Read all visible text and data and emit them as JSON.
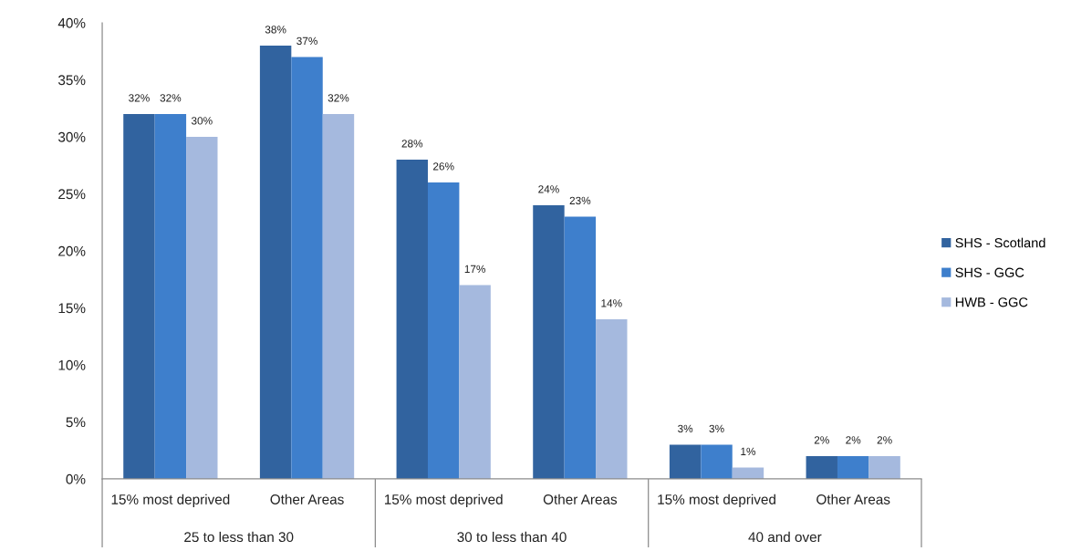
{
  "chart_data": {
    "type": "bar",
    "categories": [
      "15% most deprived",
      "Other Areas",
      "15% most deprived",
      "Other Areas",
      "15% most deprived",
      "Other Areas"
    ],
    "series": [
      {
        "name": "SHS - Scotland",
        "color": "#31639f",
        "values": [
          32,
          38,
          28,
          24,
          3,
          2
        ],
        "value_labels": [
          "32%",
          "38%",
          "28%",
          "24%",
          "3%",
          "2%"
        ]
      },
      {
        "name": "SHS - GGC",
        "color": "#3e7fcc",
        "values": [
          32,
          37,
          26,
          23,
          3,
          2
        ],
        "value_labels": [
          "32%",
          "37%",
          "26%",
          "23%",
          "3%",
          "2%"
        ]
      },
      {
        "name": "HWB - GGC",
        "color": "#a5b9de",
        "values": [
          30,
          32,
          17,
          14,
          1,
          2
        ],
        "value_labels": [
          "30%",
          "32%",
          "17%",
          "14%",
          "1%",
          "2%"
        ]
      }
    ],
    "ylim": [
      0,
      40
    ],
    "yticks": [
      {
        "value": 0,
        "label": "0%"
      },
      {
        "value": 5,
        "label": "5%"
      },
      {
        "value": 10,
        "label": "10%"
      },
      {
        "value": 15,
        "label": "15%"
      },
      {
        "value": 20,
        "label": "20%"
      },
      {
        "value": 25,
        "label": "25%"
      },
      {
        "value": 30,
        "label": "30%"
      },
      {
        "value": 35,
        "label": "35%"
      },
      {
        "value": 40,
        "label": "40%"
      }
    ],
    "annotations": [
      "25 to less than 30",
      "30 to less than 40",
      "40 and over"
    ],
    "legend": "right"
  }
}
